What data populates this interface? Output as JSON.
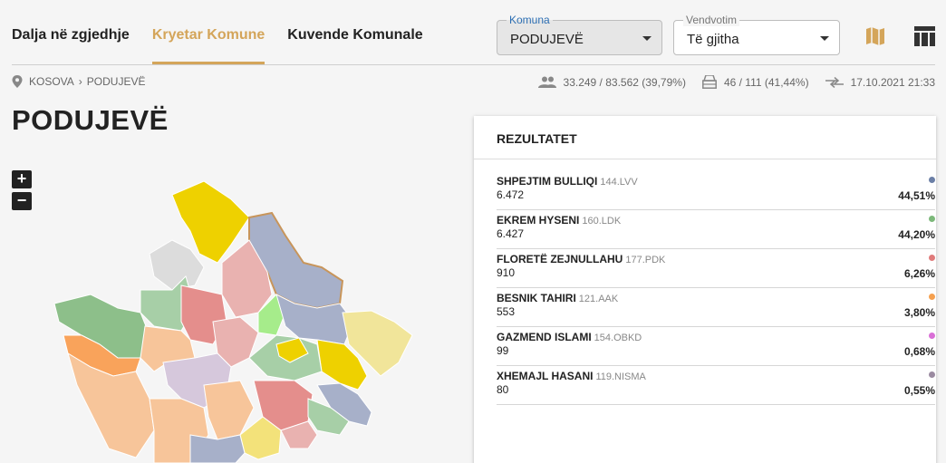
{
  "tabs": [
    {
      "label": "Dalja në zgjedhje",
      "active": false
    },
    {
      "label": "Kryetar Komune",
      "active": true
    },
    {
      "label": "Kuvende Komunale",
      "active": false
    }
  ],
  "filters": {
    "komuna": {
      "label": "Komuna",
      "value": "PODUJEVË"
    },
    "vendvotim": {
      "label": "Vendvotim",
      "value": "Të gjitha"
    }
  },
  "breadcrumb": {
    "root": "KOSOVA",
    "current": "PODUJEVË"
  },
  "stats": {
    "turnout": "33.249 / 83.562 (39,79%)",
    "stations": "46 / 111 (41,44%)",
    "updated": "17.10.2021 21:33"
  },
  "page_title": "PODUJEVË",
  "zoom": {
    "in": "+",
    "out": "−"
  },
  "results": {
    "title": "REZULTATET",
    "candidates": [
      {
        "name": "SHPEJTIM BULLIQI",
        "party": "144.LVV",
        "votes": "6.472",
        "pct": "44,51%",
        "color": "#6b7fa6"
      },
      {
        "name": "EKREM HYSENI",
        "party": "160.LDK",
        "votes": "6.427",
        "pct": "44,20%",
        "color": "#7cb87a"
      },
      {
        "name": "FLORETË ZEJNULLAHU",
        "party": "177.PDK",
        "votes": "910",
        "pct": "6,26%",
        "color": "#e07b7b"
      },
      {
        "name": "BESNIK TAHIRI",
        "party": "121.AAK",
        "votes": "553",
        "pct": "3,80%",
        "color": "#f5a04f"
      },
      {
        "name": "GAZMEND ISLAMI",
        "party": "154.OBKD",
        "votes": "99",
        "pct": "0,68%",
        "color": "#d96fd6"
      },
      {
        "name": "XHEMAJL HASANI",
        "party": "119.NISMA",
        "votes": "80",
        "pct": "0,55%",
        "color": "#9a8aa0"
      }
    ]
  }
}
